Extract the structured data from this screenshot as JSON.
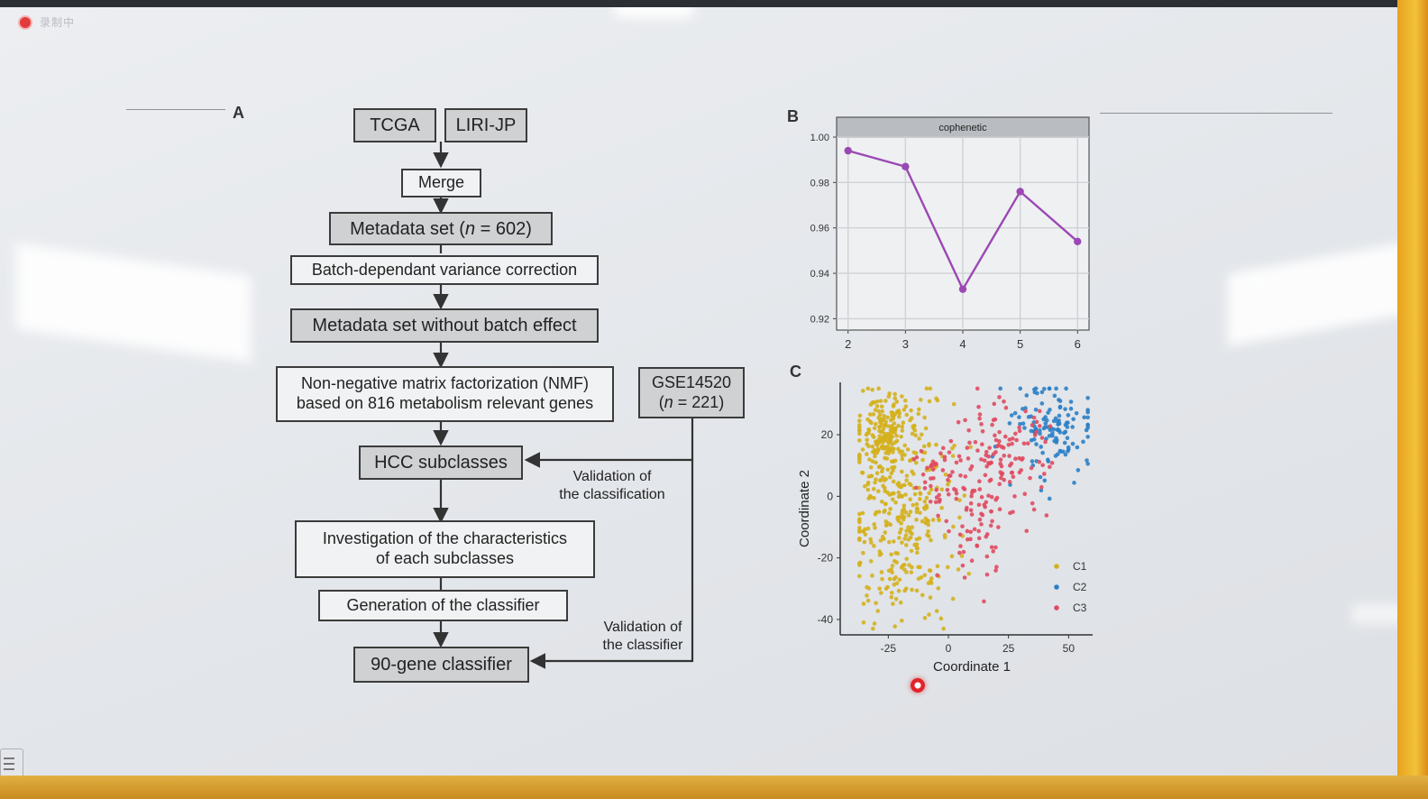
{
  "recording": {
    "label": "录制中"
  },
  "panel_letters": {
    "a": "A",
    "b": "B",
    "c": "C"
  },
  "flowchart": {
    "tcga": "TCGA",
    "liri": "LIRI-JP",
    "merge": "Merge",
    "metadata_pre": "Metadata set (",
    "metadata_n": "n",
    "metadata_post": " = 602)",
    "batch_correction": "Batch-dependant variance correction",
    "no_batch": "Metadata set without batch effect",
    "nmf": "Non-negative matrix factorization (NMF)\nbased on 816 metabolism relevant genes",
    "gse": "GSE14520",
    "gse_pre": "(",
    "gse_n": "n",
    "gse_post": " = 221)",
    "hcc": "HCC subclasses",
    "validation_classification": "Validation of\nthe classification",
    "investigation": "Investigation of the characteristics\nof each subclasses",
    "generation": "Generation of the classifier",
    "validation_classifier": "Validation of\nthe classifier",
    "gene90": "90-gene classifier"
  },
  "chart_data": [
    {
      "type": "line",
      "panel": "B",
      "strip_title": "cophenetic",
      "x": [
        2,
        3,
        4,
        5,
        6
      ],
      "y": [
        0.994,
        0.987,
        0.933,
        0.976,
        0.954
      ],
      "xlim": [
        1.8,
        6.2
      ],
      "ylim": [
        0.915,
        1.0
      ],
      "xticks": [
        "2",
        "3",
        "4",
        "5",
        "6"
      ],
      "yticks": [
        "0.92",
        "0.94",
        "0.96",
        "0.98",
        "1.00"
      ],
      "grid": true,
      "color": "#9b48b4"
    },
    {
      "type": "scatter",
      "panel": "C",
      "xlabel": "Coordinate 1",
      "ylabel": "Coordinate 2",
      "xlim": [
        -45,
        60
      ],
      "ylim": [
        -45,
        37
      ],
      "xticks": [
        "-25",
        "0",
        "25",
        "50"
      ],
      "yticks": [
        "-40",
        "-20",
        "0",
        "20"
      ],
      "legend_position": "bottom-right",
      "series": [
        {
          "name": "C1",
          "color": "#d4b01c",
          "count": 520,
          "clusters": [
            [
              -20,
              -5,
              11,
              18,
              0.7
            ],
            [
              -27,
              21,
              5,
              6,
              0.3
            ]
          ]
        },
        {
          "name": "C2",
          "color": "#2b7fc6",
          "count": 130,
          "clusters": [
            [
              48,
              23,
              8,
              7,
              0.65
            ],
            [
              35,
              18,
              9,
              8,
              0.35
            ]
          ]
        },
        {
          "name": "C3",
          "color": "#e04a5f",
          "count": 220,
          "clusters": [
            [
              22,
              12,
              10,
              9,
              0.55
            ],
            [
              12,
              -8,
              7,
              10,
              0.25
            ],
            [
              -3,
              6,
              6,
              7,
              0.2
            ]
          ]
        }
      ]
    }
  ]
}
